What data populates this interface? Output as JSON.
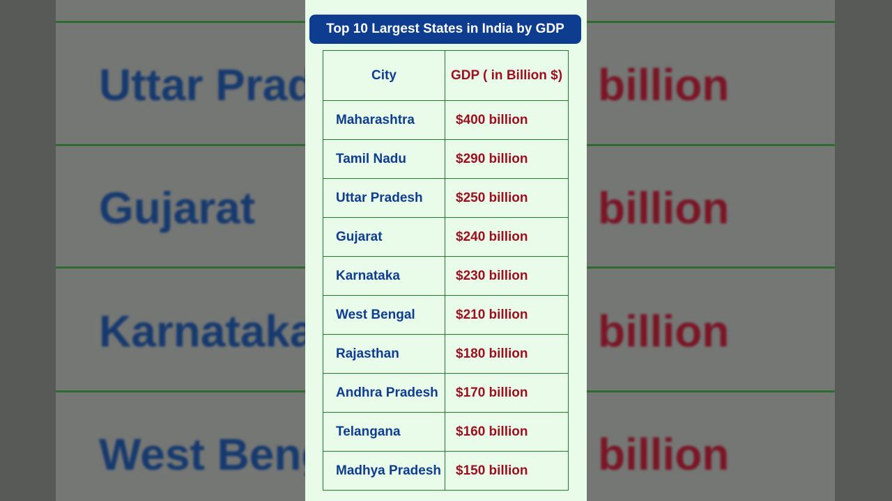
{
  "background": {
    "states": [
      "Uttar Pradesh",
      "Gujarat",
      "Karnataka",
      "West Bengal"
    ],
    "values": [
      "billion",
      "billion",
      "billion",
      "billion"
    ]
  },
  "header": {
    "title": "Top 10 Largest States in India by GDP"
  },
  "table": {
    "columns": [
      "City",
      "GDP ( in Billion $)"
    ],
    "rows": [
      [
        "Maharashtra",
        "$400 billion"
      ],
      [
        "Tamil Nadu",
        "$290 billion"
      ],
      [
        "Uttar Pradesh",
        "$250 billion"
      ],
      [
        "Gujarat",
        "$240 billion"
      ],
      [
        "Karnataka",
        "$230 billion"
      ],
      [
        "West Bengal",
        "$210 billion"
      ],
      [
        "Rajasthan",
        "$180 billion"
      ],
      [
        "Andhra Pradesh",
        "$170 billion"
      ],
      [
        "Telangana",
        "$160 billion"
      ],
      [
        "Madhya Pradesh",
        "$150 billion"
      ]
    ]
  }
}
